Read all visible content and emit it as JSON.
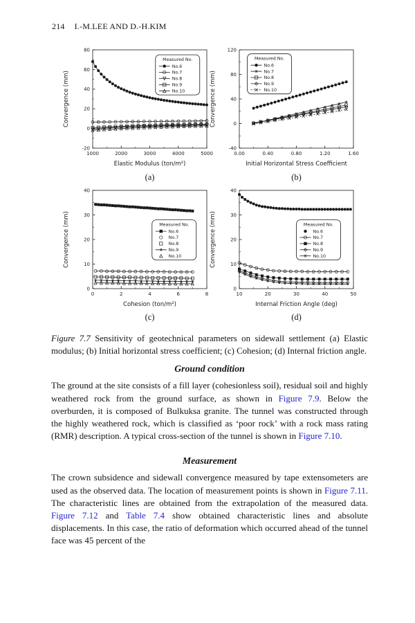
{
  "page": {
    "header": {
      "page_number": "214",
      "running_title": "I.-M.LEE AND D.-H.KIM"
    },
    "figure_caption": {
      "label": "Figure 7.7",
      "text": " Sensitivity of geotechnical parameters on sidewall settlement (a) Elastic modulus; (b) Initial horizontal stress coefficient; (c) Cohesion; (d) Internal friction angle."
    },
    "sections": [
      {
        "heading": "Ground condition",
        "paragraphs": [
          [
            {
              "t": "The ground at the site consists of a fill layer (cohesionless soil), residual soil and highly weathered rock from the ground surface, as shown in "
            },
            {
              "t": "Figure 7.9",
              "link": true
            },
            {
              "t": ". Below the overburden, it is composed of Bulkuksa granite. The tunnel was constructed through the highly weathered rock, which is classified as ‘poor rock’ with a rock mass rating (RMR) description. A typical cross-section of the tunnel is shown in "
            },
            {
              "t": "Figure 7.10",
              "link": true
            },
            {
              "t": "."
            }
          ]
        ]
      },
      {
        "heading": "Measurement",
        "paragraphs": [
          [
            {
              "t": "The crown subsidence and sidewall convergence measured by tape extensometers are used as the observed data. The location of measurement points is shown in "
            },
            {
              "t": "Figure 7.11",
              "link": true
            },
            {
              "t": ". The characteristic lines are obtained from the extrapolation of the measured data. "
            },
            {
              "t": "Figure 7.12",
              "link": true
            },
            {
              "t": " and "
            },
            {
              "t": "Table 7.4",
              "link": true
            },
            {
              "t": " show obtained characteristic lines and absolute displacements. In this case, the ratio of deformation which occurred ahead of the tunnel face was 45 percent of the"
            }
          ]
        ]
      }
    ]
  },
  "colors": {
    "link": "#2323cc",
    "text": "#141414",
    "chart_ink": "#1a1a1a",
    "background": "#ffffff"
  },
  "chart_data": [
    {
      "id": "a",
      "sublabel": "(a)",
      "type": "line",
      "title": "",
      "xlabel": "Elastic Modulus (ton/m²)",
      "ylabel": "Convergence (mm)",
      "xlim": [
        1000,
        5000
      ],
      "ylim": [
        -20,
        80
      ],
      "xticks": [
        1000,
        2000,
        3000,
        4000,
        5000
      ],
      "xtick_labels": [
        "1000",
        "2000",
        "3000",
        "4000",
        "5000"
      ],
      "yticks": [
        -20,
        0,
        20,
        40,
        60,
        80
      ],
      "legend": {
        "title": "Measured No.",
        "x": 0.55,
        "y": 0.05
      },
      "series": [
        {
          "name": "No.6",
          "marker": "circle-filled",
          "x0": 1000,
          "dx": 100,
          "y": [
            68.0,
            63.0,
            58.8,
            55.3,
            52.3,
            49.7,
            47.4,
            45.4,
            43.6,
            41.9,
            40.5,
            39.2,
            38.0,
            36.9,
            35.9,
            35.0,
            34.2,
            33.4,
            32.6,
            32.0,
            31.3,
            30.7,
            30.2,
            29.7,
            29.2,
            28.7,
            28.3,
            27.9,
            27.5,
            27.1,
            26.8,
            26.4,
            26.1,
            25.8,
            25.5,
            25.2,
            25.0,
            24.7,
            24.5,
            24.2,
            24.0
          ]
        },
        {
          "name": "No.7",
          "marker": "circle-open",
          "x0": 1000,
          "dx": 200,
          "y": [
            6.5,
            6.6,
            6.6,
            6.7,
            6.8,
            6.8,
            6.9,
            7.0,
            7.0,
            7.1,
            7.1,
            7.2,
            7.2,
            7.3,
            7.3,
            7.4,
            7.5,
            7.5,
            7.6,
            7.7,
            7.8
          ]
        },
        {
          "name": "No.8",
          "marker": "triangle-down-open",
          "x0": 1000,
          "dx": 200,
          "y": [
            -0.5,
            -0.1,
            0.3,
            0.6,
            0.9,
            1.2,
            1.5,
            1.7,
            1.9,
            2.1,
            2.3,
            2.5,
            2.7,
            2.8,
            3.0,
            3.1,
            3.3,
            3.4,
            3.5,
            3.6,
            3.7
          ]
        },
        {
          "name": "No.9",
          "marker": "square-open",
          "x0": 1000,
          "dx": 200,
          "y": [
            0.8,
            1.1,
            1.4,
            1.7,
            2.0,
            2.2,
            2.4,
            2.6,
            2.8,
            3.0,
            3.1,
            3.3,
            3.4,
            3.6,
            3.7,
            3.8,
            3.9,
            4.0,
            4.1,
            4.2,
            4.3
          ]
        },
        {
          "name": "No.10",
          "marker": "triangle-open",
          "x0": 1000,
          "dx": 200,
          "y": [
            -1.8,
            -1.4,
            -1.0,
            -0.7,
            -0.4,
            -0.1,
            0.2,
            0.4,
            0.7,
            0.9,
            1.1,
            1.3,
            1.5,
            1.7,
            1.8,
            2.0,
            2.1,
            2.3,
            2.4,
            2.5,
            2.6
          ]
        }
      ]
    },
    {
      "id": "b",
      "sublabel": "(b)",
      "type": "line",
      "title": "",
      "xlabel": "Initial Horizontal Stress Coefficient",
      "ylabel": "Convergence (mm)",
      "xlim": [
        0,
        1.6
      ],
      "ylim": [
        -40,
        120
      ],
      "xticks": [
        0,
        0.4,
        0.8,
        1.2,
        1.6
      ],
      "xtick_labels": [
        "0.00",
        "0.40",
        "0.80",
        "1.20",
        "1.60"
      ],
      "yticks": [
        -40,
        0,
        40,
        80,
        120
      ],
      "legend": {
        "title": "Measured No.",
        "x": 0.07,
        "y": 0.04
      },
      "series": [
        {
          "name": "No.6",
          "marker": "circle-filled",
          "x0": 0.2,
          "dx": 0.05,
          "y": [
            25.0,
            26.7,
            28.3,
            30.0,
            31.6,
            33.3,
            34.9,
            36.6,
            38.2,
            39.9,
            41.5,
            43.2,
            44.8,
            46.5,
            48.1,
            49.8,
            51.4,
            53.1,
            54.7,
            56.4,
            58.0,
            59.7,
            61.3,
            63.0,
            64.6,
            66.3,
            67.9
          ]
        },
        {
          "name": "No.7",
          "marker": "star",
          "x0": 0.2,
          "dx": 0.1,
          "y": [
            0.0,
            2.7,
            5.4,
            8.1,
            10.8,
            13.5,
            16.2,
            18.8,
            21.5,
            24.2,
            26.9,
            29.6,
            32.3,
            35.0
          ]
        },
        {
          "name": "No.8",
          "marker": "square-open",
          "x0": 0.2,
          "dx": 0.1,
          "y": [
            0.5,
            2.8,
            5.0,
            7.3,
            9.6,
            11.8,
            14.1,
            16.4,
            18.6,
            20.9,
            23.2,
            25.4,
            27.7,
            30.0
          ]
        },
        {
          "name": "No.9",
          "marker": "diamond-open",
          "x0": 0.2,
          "dx": 0.1,
          "y": [
            1.0,
            3.0,
            5.0,
            7.0,
            9.0,
            11.0,
            13.0,
            15.0,
            17.0,
            19.0,
            21.0,
            23.0,
            25.0,
            27.0
          ]
        },
        {
          "name": "No.10",
          "marker": "cross",
          "dash": "2,2",
          "x0": 0.2,
          "dx": 0.1,
          "y": [
            -0.5,
            1.3,
            3.1,
            4.9,
            6.7,
            8.5,
            10.3,
            12.1,
            13.9,
            15.7,
            17.5,
            19.3,
            21.2,
            23.0
          ]
        }
      ]
    },
    {
      "id": "c",
      "sublabel": "(c)",
      "type": "line",
      "title": "",
      "xlabel": "Cohesion (ton/m²)",
      "ylabel": "Convergence (mm)",
      "xlim": [
        0,
        8
      ],
      "ylim": [
        0,
        40
      ],
      "xticks": [
        0,
        2,
        4,
        6,
        8
      ],
      "xtick_labels": [
        "0",
        "2",
        "4",
        "6",
        "8"
      ],
      "yticks": [
        0,
        10,
        20,
        30,
        40
      ],
      "legend": {
        "title": "Measured No.",
        "x": 0.52,
        "y": 0.3
      },
      "series": [
        {
          "name": "No.6",
          "marker": "square-filled",
          "x0": 0.2,
          "dx": 0.2,
          "y": [
            34.3,
            34.2,
            34.1,
            34.1,
            34.0,
            33.9,
            33.8,
            33.7,
            33.7,
            33.6,
            33.5,
            33.4,
            33.3,
            33.3,
            33.2,
            33.1,
            33.0,
            32.9,
            32.9,
            32.8,
            32.7,
            32.6,
            32.5,
            32.5,
            32.4,
            32.3,
            32.2,
            32.1,
            32.1,
            32.0,
            31.9,
            31.8,
            31.7,
            31.7,
            31.6
          ]
        },
        {
          "name": "No.7",
          "marker": "circle-open",
          "legend_line": false,
          "x0": 0.2,
          "dx": 0.4,
          "y": [
            7.2,
            7.2,
            7.1,
            7.1,
            7.1,
            7.0,
            7.0,
            7.0,
            7.0,
            6.9,
            6.9,
            6.9,
            6.9,
            6.8,
            6.8,
            6.8,
            6.8,
            6.8
          ]
        },
        {
          "name": "No.8",
          "marker": "square-open",
          "legend_line": false,
          "x0": 0.2,
          "dx": 0.4,
          "y": [
            4.8,
            4.8,
            4.7,
            4.7,
            4.6,
            4.6,
            4.6,
            4.5,
            4.5,
            4.5,
            4.4,
            4.4,
            4.4,
            4.3,
            4.3,
            4.3,
            4.2,
            4.2
          ]
        },
        {
          "name": "No.9",
          "marker": "star",
          "x0": 0.2,
          "dx": 0.4,
          "y": [
            3.4,
            3.4,
            3.3,
            3.3,
            3.3,
            3.2,
            3.2,
            3.2,
            3.1,
            3.1,
            3.1,
            3.0,
            3.0,
            3.0,
            3.0,
            2.9,
            2.9,
            2.9
          ]
        },
        {
          "name": "No.10",
          "marker": "triangle-open",
          "legend_line": false,
          "x0": 0.2,
          "dx": 0.4,
          "y": [
            2.4,
            2.4,
            2.3,
            2.3,
            2.3,
            2.2,
            2.2,
            2.2,
            2.2,
            2.1,
            2.1,
            2.1,
            2.1,
            2.0,
            2.0,
            2.0,
            2.0,
            2.0
          ]
        }
      ]
    },
    {
      "id": "d",
      "sublabel": "(d)",
      "type": "line",
      "title": "",
      "xlabel": "Internal Friction Angle (deg)",
      "ylabel": "Convergence (mm)",
      "xlim": [
        10,
        50
      ],
      "ylim": [
        0,
        40
      ],
      "xticks": [
        10,
        20,
        30,
        40,
        50
      ],
      "xtick_labels": [
        "10",
        "20",
        "30",
        "40",
        "50"
      ],
      "yticks": [
        0,
        10,
        20,
        30,
        40
      ],
      "legend": {
        "title": "Measured No.",
        "x": 0.5,
        "y": 0.3
      },
      "series": [
        {
          "name": "No.6",
          "marker": "circle-filled",
          "legend_line": false,
          "x0": 10,
          "dx": 1,
          "y": [
            38.3,
            37.2,
            36.3,
            35.6,
            35.0,
            34.5,
            34.0,
            33.7,
            33.4,
            33.3,
            33.1,
            33.0,
            32.8,
            32.7,
            32.6,
            32.6,
            32.5,
            32.5,
            32.4,
            32.4,
            32.4,
            32.4,
            32.3,
            32.3,
            32.3,
            32.3,
            32.3,
            32.3,
            32.3,
            32.3,
            32.3,
            32.3,
            32.3,
            32.3,
            32.3,
            32.3,
            32.3,
            32.3,
            32.3,
            32.3
          ]
        },
        {
          "name": "No.7",
          "marker": "circle-open",
          "x0": 10,
          "dx": 2,
          "y": [
            10.5,
            9.7,
            9.0,
            8.4,
            7.9,
            7.6,
            7.3,
            7.2,
            7.1,
            7.0,
            7.0,
            7.0,
            6.9,
            6.9,
            6.9,
            6.9,
            6.9,
            6.9,
            6.9,
            6.9
          ]
        },
        {
          "name": "No.8",
          "marker": "square-filled",
          "x0": 10,
          "dx": 2,
          "y": [
            8.0,
            7.2,
            6.4,
            5.7,
            5.2,
            4.8,
            4.5,
            4.3,
            4.1,
            4.0,
            4.0,
            3.9,
            3.9,
            3.9,
            3.9,
            3.9,
            3.9,
            3.9,
            3.9,
            3.9
          ]
        },
        {
          "name": "No.9",
          "marker": "diamond-open",
          "x0": 10,
          "dx": 2,
          "y": [
            7.3,
            6.4,
            5.5,
            4.8,
            4.2,
            3.7,
            3.3,
            3.0,
            2.8,
            2.7,
            2.6,
            2.6,
            2.6,
            2.5,
            2.5,
            2.5,
            2.5,
            2.5,
            2.5,
            2.5
          ]
        },
        {
          "name": "No.10",
          "marker": "star",
          "x0": 10,
          "dx": 2,
          "y": [
            6.8,
            5.8,
            4.9,
            4.2,
            3.6,
            3.1,
            2.7,
            2.4,
            2.2,
            2.1,
            2.0,
            2.0,
            1.9,
            1.9,
            1.9,
            1.9,
            1.9,
            1.9,
            1.9,
            1.9
          ]
        }
      ]
    }
  ]
}
